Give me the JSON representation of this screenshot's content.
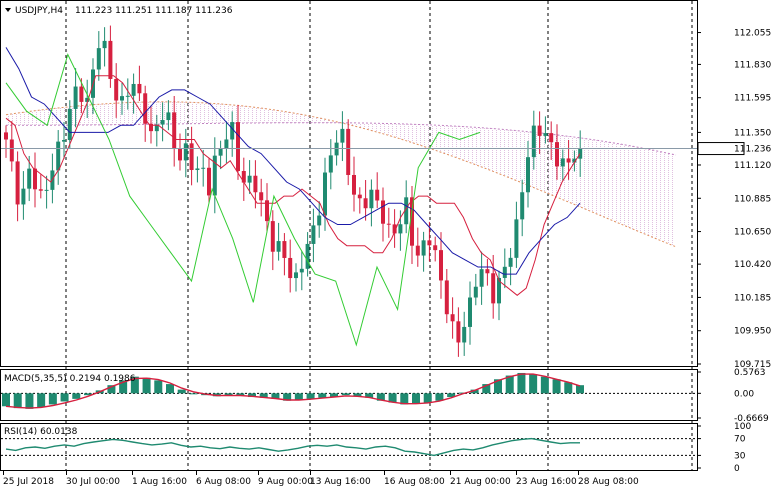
{
  "header": {
    "symbol": "USDJPY,H4",
    "ohlc": "111.223 111.251 111.187 111.236"
  },
  "colors": {
    "bull": "#1f8a70",
    "bear": "#d6203f",
    "tenkan": "#d6203f",
    "kijun": "#1a1aa8",
    "chikou": "#33cc33",
    "cloud_up": "#c080c0",
    "cloud_down": "#e09060",
    "macd_hist": "#1f8a70",
    "macd_signal": "#d6203f",
    "rsi_line": "#1f8a70",
    "price_tag_bg": "#ffffff"
  },
  "chart_data": [
    {
      "type": "candlestick",
      "panel": "price",
      "ylim": [
        109.715,
        112.2
      ],
      "y_ticks": [
        "112.055",
        "111.830",
        "111.595",
        "111.350",
        "111.120",
        "110.885",
        "110.650",
        "110.420",
        "110.185",
        "109.950",
        "109.715"
      ],
      "y_tick_values": [
        112.055,
        111.83,
        111.595,
        111.35,
        111.12,
        110.885,
        110.65,
        110.42,
        110.185,
        109.95,
        109.715
      ],
      "current_price_label": "111.236",
      "current_price": 111.236,
      "x_ticks": [
        "25 Jul 2018",
        "30 Jul 00:00",
        "1 Aug 16:00",
        "6 Aug 08:00",
        "9 Aug 00:00",
        "13 Aug 16:00",
        "16 Aug 08:00",
        "21 Aug 00:00",
        "23 Aug 16:00",
        "28 Aug 08:00"
      ],
      "bar_count": 100,
      "close_path": [
        111.3,
        111.05,
        110.8,
        111.1,
        111.0,
        110.85,
        111.05,
        111.2,
        111.35,
        111.55,
        111.7,
        111.5,
        111.8,
        112.05,
        111.85,
        111.6,
        111.55,
        111.7,
        111.65,
        111.5,
        111.3,
        111.45,
        111.5,
        111.3,
        111.15,
        111.25,
        111.05,
        111.1,
        110.95,
        111.2,
        111.3,
        111.4,
        111.1,
        110.95,
        111.05,
        110.85,
        110.7,
        110.5,
        110.55,
        110.35,
        110.3,
        110.5,
        110.6,
        110.8,
        111.05,
        111.25,
        111.4,
        111.1,
        110.9,
        110.8,
        110.95,
        110.85,
        110.75,
        110.6,
        110.7,
        110.85,
        110.55,
        110.45,
        110.65,
        110.5,
        110.25,
        110.05,
        109.85,
        110.0,
        110.15,
        110.4,
        110.35,
        110.2,
        110.3,
        110.45,
        110.6,
        110.95,
        111.25,
        111.4,
        111.35,
        111.25,
        111.15,
        111.1,
        111.2,
        111.236
      ],
      "ichimoku": {
        "tenkan": [
          111.45,
          111.4,
          111.2,
          111.1,
          111.05,
          111.0,
          111.1,
          111.25,
          111.4,
          111.55,
          111.75,
          111.75,
          111.75,
          111.7,
          111.6,
          111.5,
          111.4,
          111.4,
          111.35,
          111.3,
          111.3,
          111.3,
          111.2,
          111.15,
          111.1,
          111.15,
          111.05,
          110.95,
          110.85,
          110.85,
          110.85,
          110.9,
          110.9,
          110.95,
          110.9,
          110.85,
          110.7,
          110.6,
          110.55,
          110.55,
          110.55,
          110.5,
          110.5,
          110.6,
          110.75,
          110.85,
          110.9,
          110.9,
          110.85,
          110.85,
          110.85,
          110.75,
          110.6,
          110.5,
          110.45,
          110.3,
          110.25,
          110.2,
          110.25,
          110.45,
          110.7,
          110.85,
          111.0,
          111.1,
          111.2
        ],
        "kijun": [
          111.95,
          111.8,
          111.6,
          111.55,
          111.45,
          111.35,
          111.35,
          111.35,
          111.35,
          111.4,
          111.4,
          111.5,
          111.6,
          111.65,
          111.65,
          111.6,
          111.55,
          111.45,
          111.35,
          111.25,
          111.2,
          111.1,
          111.0,
          110.95,
          110.85,
          110.75,
          110.7,
          110.7,
          110.75,
          110.8,
          110.85,
          110.85,
          110.8,
          110.7,
          110.6,
          110.5,
          110.45,
          110.4,
          110.4,
          110.35,
          110.35,
          110.5,
          110.6,
          110.7,
          110.75,
          110.85
        ],
        "chikou": [
          111.7,
          111.5,
          111.4,
          111.9,
          111.6,
          111.3,
          110.9,
          110.7,
          110.5,
          110.3,
          110.95,
          110.6,
          110.15,
          110.9,
          110.6,
          110.35,
          110.3,
          109.85,
          110.4,
          110.1,
          111.1,
          111.35,
          111.3,
          111.35
        ],
        "cloud": "filled"
      }
    },
    {
      "type": "bar",
      "panel": "indicator",
      "name": "MACD(5,35,5)",
      "readout": "0.2194 0.1986",
      "current": 0.2194,
      "signal_current": 0.1986,
      "ylim": [
        -0.6669,
        0.5763
      ],
      "y_ticks": [
        "0.5763",
        "0.00",
        "-0.6669"
      ],
      "y_tick_values": [
        0.5763,
        0.0,
        -0.6669
      ],
      "histogram": [
        -0.35,
        -0.4,
        -0.42,
        -0.38,
        -0.3,
        -0.22,
        -0.15,
        -0.05,
        0.08,
        0.22,
        0.35,
        0.45,
        0.42,
        0.35,
        0.25,
        0.1,
        0.0,
        -0.05,
        -0.08,
        -0.06,
        -0.05,
        -0.1,
        -0.12,
        -0.15,
        -0.2,
        -0.18,
        -0.15,
        -0.12,
        -0.1,
        -0.05,
        -0.08,
        -0.12,
        -0.2,
        -0.25,
        -0.3,
        -0.28,
        -0.25,
        -0.2,
        -0.1,
        0.02,
        0.1,
        0.25,
        0.38,
        0.48,
        0.55,
        0.52,
        0.45,
        0.38,
        0.3,
        0.22
      ],
      "signal": [
        -0.35,
        -0.38,
        -0.4,
        -0.38,
        -0.33,
        -0.26,
        -0.18,
        -0.08,
        0.04,
        0.18,
        0.3,
        0.4,
        0.41,
        0.37,
        0.28,
        0.14,
        0.04,
        -0.02,
        -0.06,
        -0.06,
        -0.06,
        -0.08,
        -0.11,
        -0.14,
        -0.18,
        -0.18,
        -0.16,
        -0.13,
        -0.1,
        -0.07,
        -0.08,
        -0.11,
        -0.18,
        -0.24,
        -0.28,
        -0.28,
        -0.26,
        -0.21,
        -0.12,
        -0.01,
        0.08,
        0.21,
        0.34,
        0.45,
        0.52,
        0.52,
        0.46,
        0.38,
        0.3,
        0.2
      ]
    },
    {
      "type": "line",
      "panel": "indicator",
      "name": "RSI(14)",
      "readout": "60.0138",
      "current": 60.0138,
      "ylim": [
        0,
        100
      ],
      "y_ticks": [
        "100",
        "70",
        "30",
        "0"
      ],
      "y_tick_values": [
        100,
        70,
        30,
        0
      ],
      "levels": [
        70,
        30
      ],
      "values": [
        45,
        42,
        48,
        50,
        47,
        52,
        55,
        52,
        58,
        62,
        65,
        68,
        66,
        62,
        58,
        55,
        57,
        60,
        54,
        50,
        52,
        48,
        46,
        50,
        47,
        45,
        48,
        44,
        40,
        43,
        47,
        52,
        54,
        52,
        55,
        50,
        48,
        45,
        50,
        52,
        48,
        40,
        38,
        34,
        30,
        36,
        42,
        45,
        43,
        48,
        55,
        60,
        65,
        68,
        70,
        66,
        62,
        58,
        60,
        60.0138
      ]
    }
  ]
}
